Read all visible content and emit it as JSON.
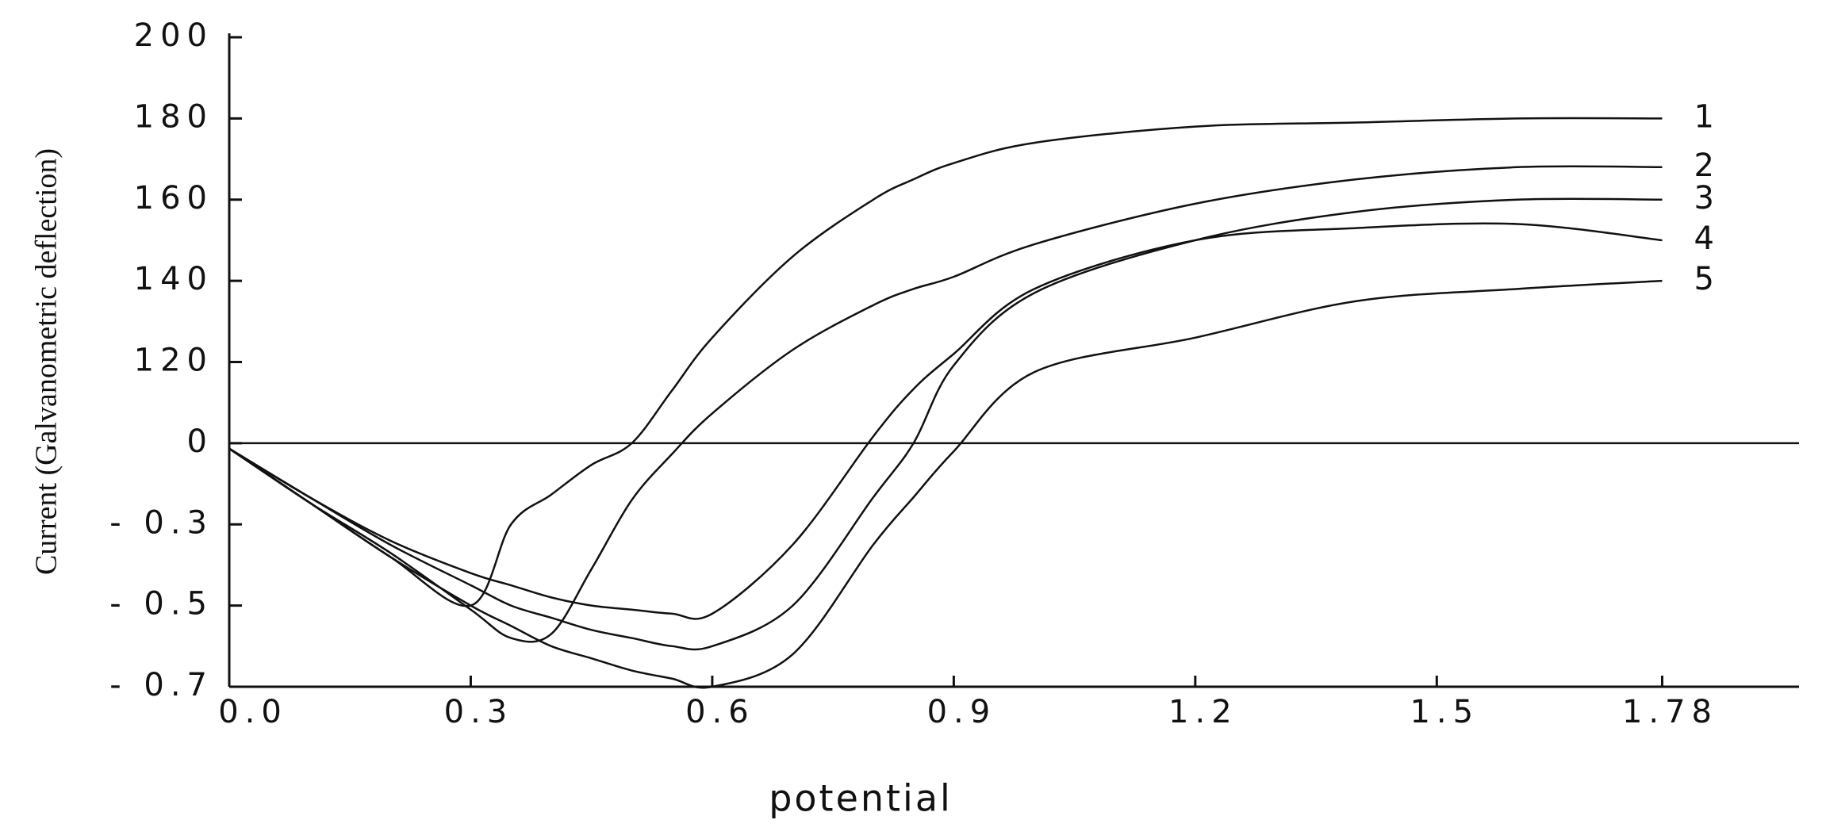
{
  "chart_data": {
    "type": "line",
    "x_label": "potential",
    "y_label": "Current (Galvanometric deflection)",
    "x": [
      0,
      0.1,
      0.2,
      0.3,
      0.35,
      0.4,
      0.45,
      0.5,
      0.55,
      0.6,
      0.7,
      0.8,
      0.85,
      0.9,
      1.0,
      1.2,
      1.4,
      1.6,
      1.78
    ],
    "series": [
      {
        "name": "1",
        "color": "#111111",
        "values": [
          -0.02,
          -0.22,
          -0.38,
          -0.5,
          -0.3,
          -0.19,
          -0.08,
          0,
          78,
          126,
          146,
          160,
          165,
          169,
          174,
          178,
          179,
          180,
          180
        ]
      },
      {
        "name": "2",
        "color": "#111111",
        "values": [
          -0.02,
          -0.22,
          -0.37,
          -0.51,
          -0.58,
          -0.57,
          -0.41,
          -0.21,
          -0.04,
          44,
          123,
          134,
          138,
          141,
          149,
          159,
          165,
          168,
          168
        ]
      },
      {
        "name": "3",
        "color": "#111111",
        "values": [
          -0.02,
          -0.2,
          -0.35,
          -0.45,
          -0.5,
          -0.53,
          -0.56,
          -0.58,
          -0.6,
          -0.6,
          -0.5,
          -0.2,
          0,
          115,
          137,
          150,
          157,
          160,
          160
        ]
      },
      {
        "name": "4",
        "color": "#111111",
        "values": [
          -0.02,
          -0.2,
          -0.34,
          -0.42,
          -0.45,
          -0.48,
          -0.5,
          -0.51,
          -0.52,
          -0.52,
          -0.35,
          10,
          80,
          122,
          138,
          150,
          153,
          154,
          150
        ]
      },
      {
        "name": "5",
        "color": "#111111",
        "values": [
          -0.02,
          -0.22,
          -0.38,
          -0.5,
          -0.55,
          -0.6,
          -0.63,
          -0.66,
          -0.68,
          -0.7,
          -0.62,
          -0.35,
          -0.2,
          -0.03,
          105,
          126,
          135,
          138,
          140
        ]
      }
    ],
    "xlim": [
      0,
      1.95
    ],
    "xticks": [
      {
        "value": 0,
        "label": "0.0"
      },
      0.3,
      0.6,
      0.9,
      1.2,
      1.5,
      1.78
    ],
    "ylim": [
      -0.7,
      200
    ],
    "yticks": [
      {
        "value": -0.7,
        "label": "- 0.7"
      },
      {
        "value": -0.5,
        "label": "- 0.5"
      },
      {
        "value": -0.3,
        "label": "- 0.3"
      },
      0,
      120,
      140,
      160,
      180,
      200
    ]
  }
}
